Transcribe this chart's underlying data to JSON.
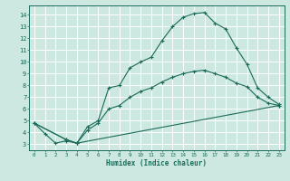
{
  "title": "",
  "xlabel": "Humidex (Indice chaleur)",
  "bg_color": "#cce8e0",
  "grid_color": "#ffffff",
  "line_color": "#1a6b5a",
  "xlim": [
    -0.5,
    23.5
  ],
  "ylim": [
    2.5,
    14.8
  ],
  "yticks": [
    3,
    4,
    5,
    6,
    7,
    8,
    9,
    10,
    11,
    12,
    13,
    14
  ],
  "xticks": [
    0,
    1,
    2,
    3,
    4,
    5,
    6,
    7,
    8,
    9,
    10,
    11,
    12,
    13,
    14,
    15,
    16,
    17,
    18,
    19,
    20,
    21,
    22,
    23
  ],
  "line1_x": [
    0,
    1,
    2,
    3,
    4,
    5,
    6,
    7,
    8,
    9,
    10,
    11,
    12,
    13,
    14,
    15,
    16,
    17,
    18,
    19,
    20,
    21,
    22,
    23
  ],
  "line1_y": [
    4.8,
    3.9,
    3.1,
    3.3,
    3.1,
    4.5,
    5.0,
    7.8,
    8.0,
    9.5,
    10.0,
    10.4,
    11.8,
    13.0,
    13.8,
    14.1,
    14.2,
    13.3,
    12.8,
    11.2,
    9.8,
    7.8,
    7.0,
    6.4
  ],
  "line2_x": [
    0,
    3,
    4,
    5,
    6,
    7,
    8,
    9,
    10,
    11,
    12,
    13,
    14,
    15,
    16,
    17,
    18,
    19,
    20,
    21,
    22,
    23
  ],
  "line2_y": [
    4.8,
    3.4,
    3.1,
    4.2,
    4.8,
    6.0,
    6.3,
    7.0,
    7.5,
    7.8,
    8.3,
    8.7,
    9.0,
    9.2,
    9.3,
    9.0,
    8.7,
    8.2,
    7.9,
    7.0,
    6.5,
    6.3
  ],
  "line3_x": [
    0,
    3,
    4,
    23
  ],
  "line3_y": [
    4.8,
    3.4,
    3.1,
    6.3
  ]
}
